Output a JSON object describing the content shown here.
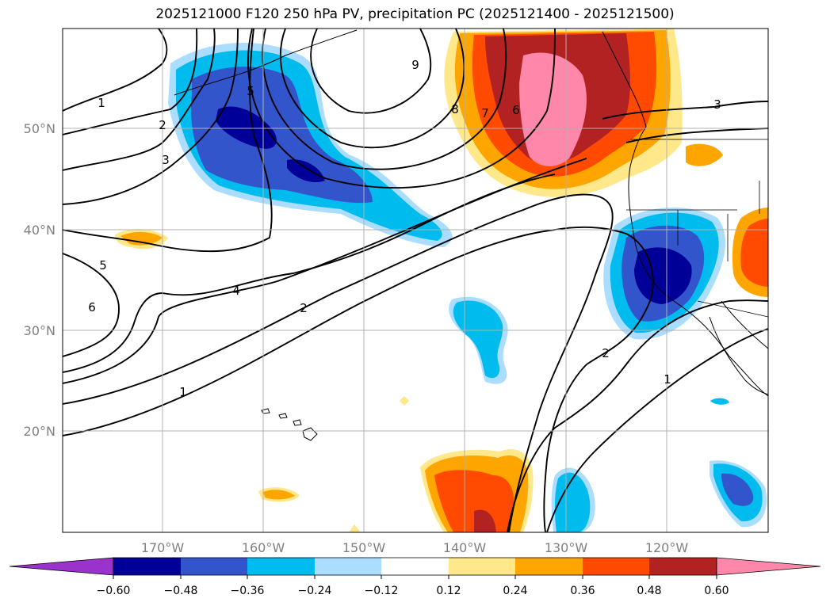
{
  "title": "2025121000 F120 250 hPa PV, precipitation PC (2025121400 - 2025121500)",
  "map": {
    "lat_ticks": [
      "50°N",
      "40°N",
      "30°N",
      "20°N"
    ],
    "lon_ticks": [
      "170°W",
      "160°W",
      "150°W",
      "140°W",
      "130°W",
      "120°W"
    ],
    "contour_labels": [
      "1",
      "2",
      "3",
      "4",
      "5",
      "6",
      "7",
      "8",
      "9",
      "5",
      "1",
      "2",
      "3",
      "2",
      "1",
      "6"
    ],
    "gridline_color": "#b0b0b0",
    "tick_label_color": "#808080"
  },
  "colorbar": {
    "ticks": [
      "−0.60",
      "−0.48",
      "−0.36",
      "−0.24",
      "−0.12",
      "0.12",
      "0.24",
      "0.36",
      "0.48",
      "0.60"
    ],
    "colors": [
      "#9933cc",
      "#000099",
      "#3355cc",
      "#00bbee",
      "#aaddff",
      "#ffffff",
      "#ffe88a",
      "#ffa500",
      "#ff4a00",
      "#b22222",
      "#ff88aa"
    ]
  },
  "chart_data": {
    "type": "heatmap",
    "title": "2025121000 F120 250 hPa PV, precipitation PC (2025121400 - 2025121500)",
    "xlabel": "",
    "ylabel": "",
    "x_range": [
      "180°W",
      "110°W"
    ],
    "y_range": [
      "10°N",
      "60°N"
    ],
    "contour_field": "250 hPa PV",
    "contour_levels": [
      1,
      2,
      3,
      4,
      5,
      6,
      7,
      8,
      9
    ],
    "fill_field": "precipitation PC",
    "colorbar_levels": [
      -0.6,
      -0.48,
      -0.36,
      -0.24,
      -0.12,
      0.12,
      0.24,
      0.36,
      0.48,
      0.6
    ],
    "colorbar_extend": "both",
    "grid": true
  }
}
